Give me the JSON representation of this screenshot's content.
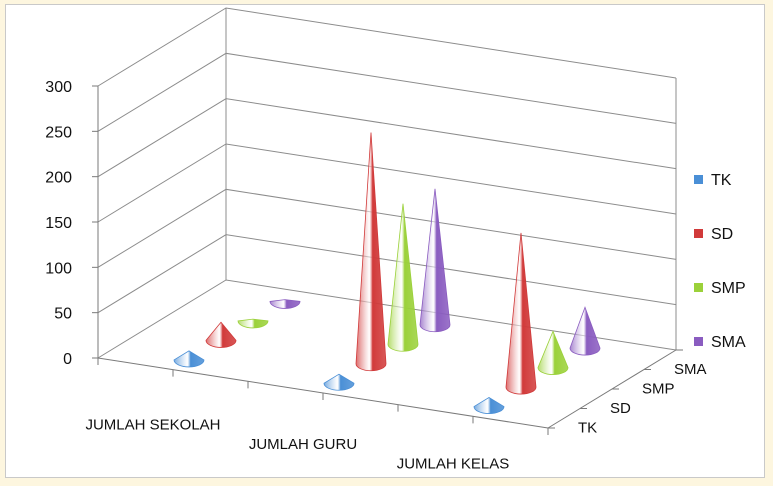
{
  "chart_data": {
    "type": "bar",
    "subtype": "3d-cone",
    "title": "",
    "categories": [
      "JUMLAH SEKOLAH",
      "JUMLAH GURU",
      "JUMLAH KELAS"
    ],
    "series": [
      {
        "name": "TK",
        "values": [
          10,
          10,
          10
        ],
        "color": "#4a8fd6"
      },
      {
        "name": "SD",
        "values": [
          20,
          255,
          170
        ],
        "color": "#d13a3a"
      },
      {
        "name": "SMP",
        "values": [
          2,
          155,
          40
        ],
        "color": "#9bd13a"
      },
      {
        "name": "SMA",
        "values": [
          2,
          150,
          45
        ],
        "color": "#8a5cc0"
      }
    ],
    "depth_labels": [
      "TK",
      "SD",
      "SMP",
      "SMA"
    ],
    "yticks": [
      0,
      50,
      100,
      150,
      200,
      250,
      300
    ],
    "ylim": [
      0,
      300
    ],
    "grid": true,
    "legend_position": "right"
  }
}
